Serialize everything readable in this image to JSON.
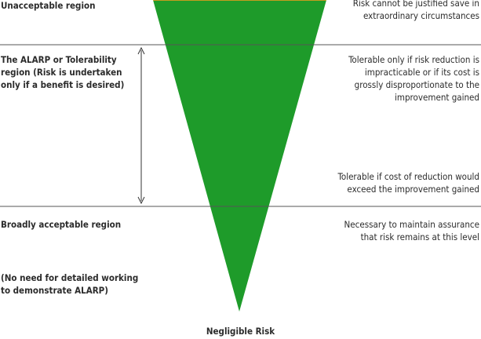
{
  "regions": {
    "unacceptable": {
      "label": "Unacceptable region",
      "note": "Risk cannot be justified save in\nextraordinary circumstances"
    },
    "alarp": {
      "label": "The ALARP or Tolerability\nregion (Risk is undertaken\nonly if a benefit is desired)",
      "note_upper": "Tolerable only if risk reduction is\nimpracticable or if its cost is\ngrossly disproportionate to the\nimprovement gained",
      "note_lower": "Tolerable if cost of reduction would\nexceed the improvement gained"
    },
    "broadly_acceptable": {
      "label": "Broadly acceptable region",
      "sublabel": "(No need for detailed working\nto demonstrate ALARP)",
      "note": "Necessary to maintain assurance\nthat risk remains at this level"
    }
  },
  "apex_label": "Negligible Risk",
  "colors": {
    "top": "#e8051c",
    "orange": "#f0a010",
    "yellow": "#f4e80e",
    "green_light": "#a8cc2a",
    "green_dark": "#1e9b2a",
    "divider": "#555555",
    "text": "#2b2b2b"
  }
}
